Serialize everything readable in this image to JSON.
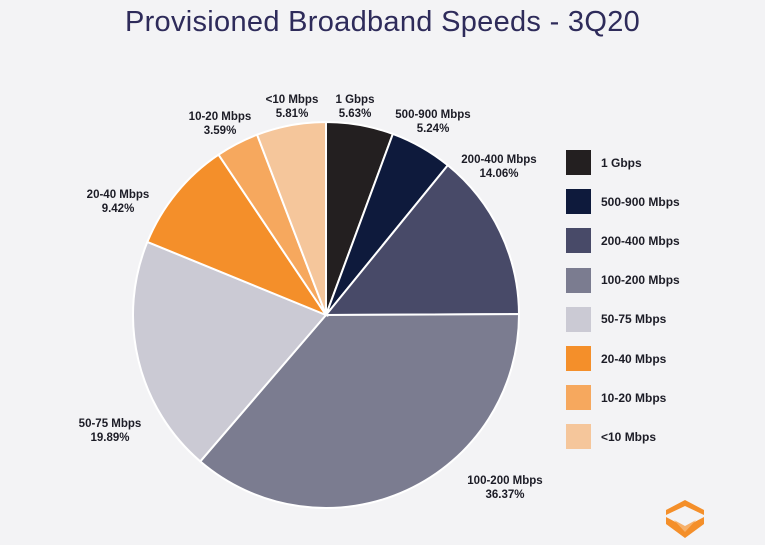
{
  "chart_data": {
    "type": "pie",
    "title": "Provisioned Broadband Speeds - 3Q20",
    "legend_position": "right",
    "slices": [
      {
        "name": "1 Gbps",
        "value": 5.63,
        "label": "5.63%",
        "color": "#231f20"
      },
      {
        "name": "500-900 Mbps",
        "value": 5.24,
        "label": "5.24%",
        "color": "#0e1a3c"
      },
      {
        "name": "200-400 Mbps",
        "value": 14.06,
        "label": "14.06%",
        "color": "#484a68"
      },
      {
        "name": "100-200 Mbps",
        "value": 36.37,
        "label": "36.37%",
        "color": "#7b7c90"
      },
      {
        "name": "50-75 Mbps",
        "value": 19.89,
        "label": "19.89%",
        "color": "#cbcad4"
      },
      {
        "name": "20-40 Mbps",
        "value": 9.42,
        "label": "9.42%",
        "color": "#f48f2a"
      },
      {
        "name": "10-20 Mbps",
        "value": 3.59,
        "label": "3.59%",
        "color": "#f6a85e"
      },
      {
        "name": "<10 Mbps",
        "value": 5.81,
        "label": "5.81%",
        "color": "#f5c69b"
      }
    ]
  },
  "logo": {
    "icon": "brand-chevron-logo-icon",
    "color": "#f48f2a"
  }
}
